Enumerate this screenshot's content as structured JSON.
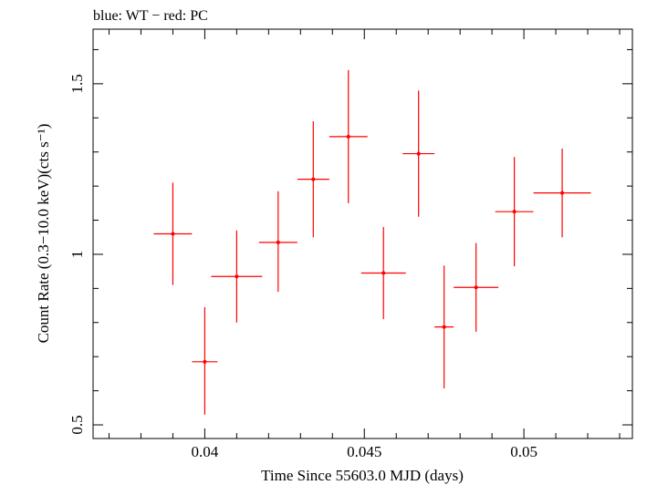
{
  "chart_data": {
    "type": "scatter",
    "title": "blue: WT − red: PC",
    "xlabel": "Time Since 55603.0 MJD (days)",
    "ylabel": "Count Rate (0.3−10.0 keV)(cts s⁻¹)",
    "xlim": [
      0.0365,
      0.0534
    ],
    "ylim": [
      0.46,
      1.66
    ],
    "x_ticks": [
      {
        "value": 0.04,
        "label": "0.04"
      },
      {
        "value": 0.045,
        "label": "0.045"
      },
      {
        "value": 0.05,
        "label": "0.05"
      }
    ],
    "y_ticks": [
      {
        "value": 0.5,
        "label": "0.5"
      },
      {
        "value": 1.0,
        "label": "1"
      },
      {
        "value": 1.5,
        "label": "1.5"
      }
    ],
    "grid": false,
    "series": [
      {
        "name": "PC",
        "color": "#ff0000",
        "points": [
          {
            "x": 0.039,
            "xerr": 0.0006,
            "y": 1.06,
            "yerr": [
              0.15,
              0.15
            ]
          },
          {
            "x": 0.04,
            "xerr": 0.0004,
            "y": 0.685,
            "yerr": [
              0.155,
              0.16
            ]
          },
          {
            "x": 0.041,
            "xerr": 0.0008,
            "y": 0.935,
            "yerr": [
              0.135,
              0.135
            ]
          },
          {
            "x": 0.0423,
            "xerr": 0.0006,
            "y": 1.035,
            "yerr": [
              0.145,
              0.15
            ]
          },
          {
            "x": 0.0434,
            "xerr": 0.0005,
            "y": 1.22,
            "yerr": [
              0.17,
              0.17
            ]
          },
          {
            "x": 0.0445,
            "xerr": 0.0006,
            "y": 1.345,
            "yerr": [
              0.195,
              0.195
            ]
          },
          {
            "x": 0.0456,
            "xerr": 0.0007,
            "y": 0.945,
            "yerr": [
              0.135,
              0.135
            ]
          },
          {
            "x": 0.0467,
            "xerr": 0.0005,
            "y": 1.295,
            "yerr": [
              0.185,
              0.185
            ]
          },
          {
            "x": 0.0475,
            "xerr": 0.0003,
            "y": 0.787,
            "yerr": [
              0.18,
              0.18
            ]
          },
          {
            "x": 0.0485,
            "xerr": 0.0007,
            "y": 0.903,
            "yerr": [
              0.13,
              0.13
            ]
          },
          {
            "x": 0.0497,
            "xerr": 0.0006,
            "y": 1.125,
            "yerr": [
              0.16,
              0.16
            ]
          },
          {
            "x": 0.0512,
            "xerr": 0.0009,
            "y": 1.18,
            "yerr": [
              0.13,
              0.13
            ]
          }
        ]
      }
    ]
  }
}
